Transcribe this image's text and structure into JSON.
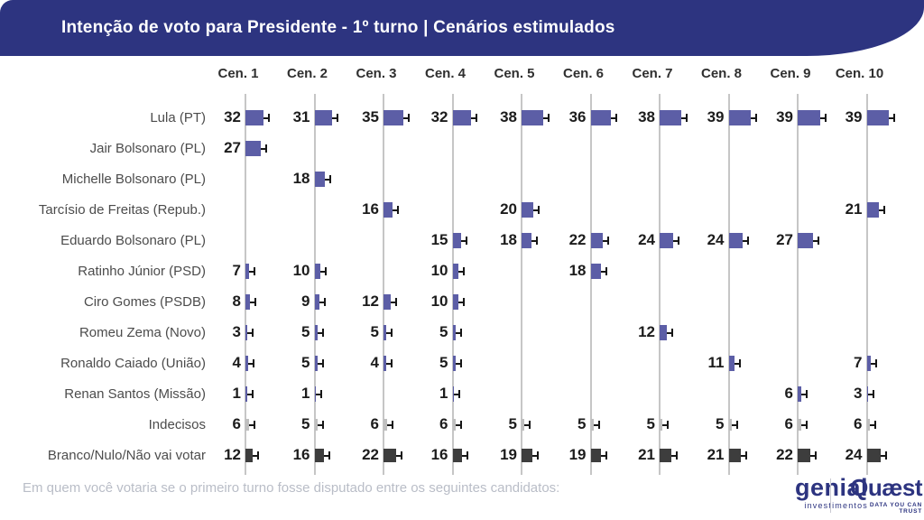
{
  "header": {
    "title": "Intenção de voto para Presidente - 1º turno | Cenários estimulados"
  },
  "footer": {
    "question": "Em quem você votaria se o primeiro turno fosse disputado entre os seguintes candidatos:",
    "logos": {
      "genial": {
        "name": "genial",
        "sub": "investimentos"
      },
      "quaest": {
        "name": "Quæst",
        "sub": "DATA YOU CAN TRUST"
      }
    }
  },
  "colors": {
    "banner": "#2d3480",
    "candidate_bar": "#5c5ea6",
    "undecided_bar": "#bfbfbf",
    "blank_bar": "#3d3d3d",
    "axis": "#c6c6c6",
    "whisker": "#161616"
  },
  "chart_data": {
    "type": "bar",
    "orientation": "horizontal",
    "unit": "percent of vote intention",
    "title": "Intenção de voto para Presidente - 1º turno | Cenários estimulados",
    "scenarios": [
      "Cen. 1",
      "Cen. 2",
      "Cen. 3",
      "Cen. 4",
      "Cen. 5",
      "Cen. 6",
      "Cen. 7",
      "Cen. 8",
      "Cen. 9",
      "Cen. 10"
    ],
    "rows": [
      {
        "label": "Lula (PT)",
        "style": "candidate",
        "values": [
          32,
          31,
          35,
          32,
          38,
          36,
          38,
          39,
          39,
          39
        ]
      },
      {
        "label": "Jair Bolsonaro (PL)",
        "style": "candidate",
        "values": [
          27,
          null,
          null,
          null,
          null,
          null,
          null,
          null,
          null,
          null
        ]
      },
      {
        "label": "Michelle Bolsonaro (PL)",
        "style": "candidate",
        "values": [
          null,
          18,
          null,
          null,
          null,
          null,
          null,
          null,
          null,
          null
        ]
      },
      {
        "label": "Tarcísio de Freitas (Repub.)",
        "style": "candidate",
        "values": [
          null,
          null,
          16,
          null,
          20,
          null,
          null,
          null,
          null,
          21
        ]
      },
      {
        "label": "Eduardo Bolsonaro (PL)",
        "style": "candidate",
        "values": [
          null,
          null,
          null,
          15,
          18,
          22,
          24,
          24,
          27,
          null
        ]
      },
      {
        "label": "Ratinho Júnior (PSD)",
        "style": "candidate",
        "values": [
          7,
          10,
          null,
          10,
          null,
          18,
          null,
          null,
          null,
          null
        ]
      },
      {
        "label": "Ciro Gomes (PSDB)",
        "style": "candidate",
        "values": [
          8,
          9,
          12,
          10,
          null,
          null,
          null,
          null,
          null,
          null
        ]
      },
      {
        "label": "Romeu Zema (Novo)",
        "style": "candidate",
        "values": [
          3,
          5,
          5,
          5,
          null,
          null,
          12,
          null,
          null,
          null
        ]
      },
      {
        "label": "Ronaldo Caiado (União)",
        "style": "candidate",
        "values": [
          4,
          5,
          4,
          5,
          null,
          null,
          null,
          11,
          null,
          7
        ]
      },
      {
        "label": "Renan Santos (Missão)",
        "style": "candidate",
        "values": [
          1,
          1,
          null,
          1,
          null,
          null,
          null,
          null,
          6,
          3
        ]
      },
      {
        "label": "Indecisos",
        "style": "undecided",
        "values": [
          6,
          5,
          6,
          6,
          5,
          5,
          5,
          5,
          6,
          6
        ]
      },
      {
        "label": "Branco/Nulo/Não vai votar",
        "style": "blank",
        "values": [
          12,
          16,
          22,
          16,
          19,
          19,
          21,
          21,
          22,
          24
        ]
      }
    ]
  }
}
